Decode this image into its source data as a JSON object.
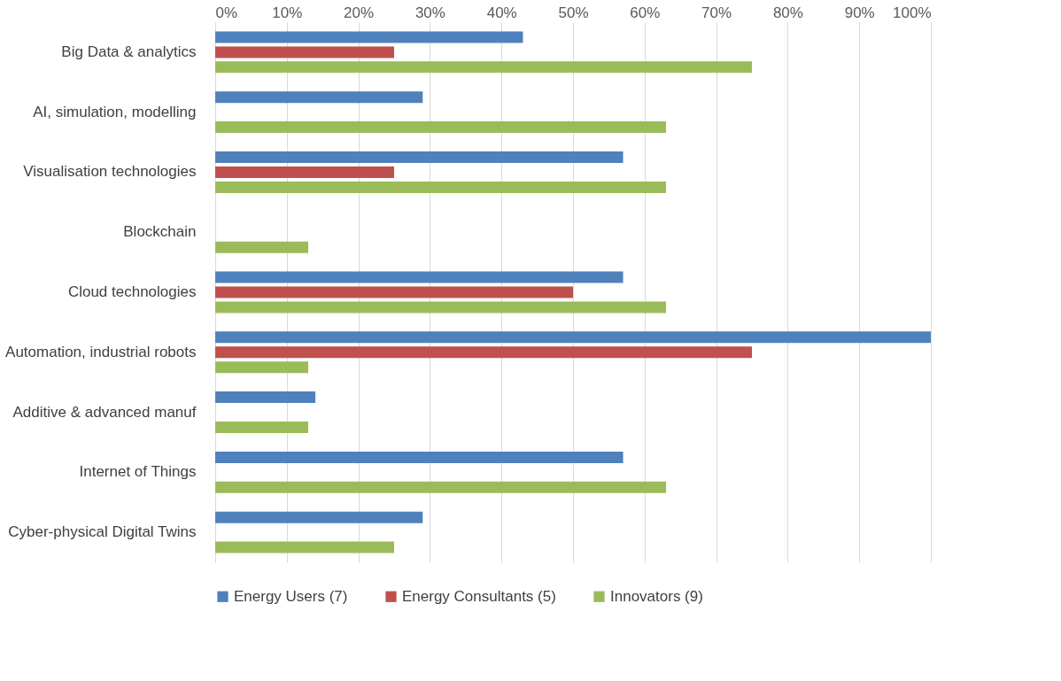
{
  "chart_data": {
    "type": "bar",
    "orientation": "horizontal",
    "categories": [
      "Big Data & analytics",
      "AI, simulation, modelling",
      "Visualisation technologies ",
      "Blockchain",
      "Cloud technologies",
      "Automation, industrial robots",
      "Additive & advanced manuf",
      "Internet of Things",
      "Cyber-physical Digital Twins"
    ],
    "series": [
      {
        "name": "Energy Users (7)",
        "color": "#4f81bd",
        "values": [
          43,
          29,
          57,
          0,
          57,
          100,
          14,
          57,
          29
        ]
      },
      {
        "name": "Energy Consultants (5)",
        "color": "#c0504d",
        "values": [
          25,
          0,
          25,
          0,
          50,
          75,
          0,
          0,
          0
        ]
      },
      {
        "name": "Innovators (9)",
        "color": "#9bbb59",
        "values": [
          75,
          63,
          63,
          13,
          63,
          13,
          13,
          63,
          25
        ]
      }
    ],
    "xlim": [
      0,
      100
    ],
    "xticks": [
      {
        "value": 0,
        "label": "0%"
      },
      {
        "value": 10,
        "label": "10%"
      },
      {
        "value": 20,
        "label": "20%"
      },
      {
        "value": 30,
        "label": "30%"
      },
      {
        "value": 40,
        "label": "40%"
      },
      {
        "value": 50,
        "label": "50%"
      },
      {
        "value": 60,
        "label": "60%"
      },
      {
        "value": 70,
        "label": "70%"
      },
      {
        "value": 80,
        "label": "80%"
      },
      {
        "value": 90,
        "label": "90%"
      },
      {
        "value": 100,
        "label": "100%"
      }
    ],
    "grid": "x",
    "legend": "bottom"
  }
}
